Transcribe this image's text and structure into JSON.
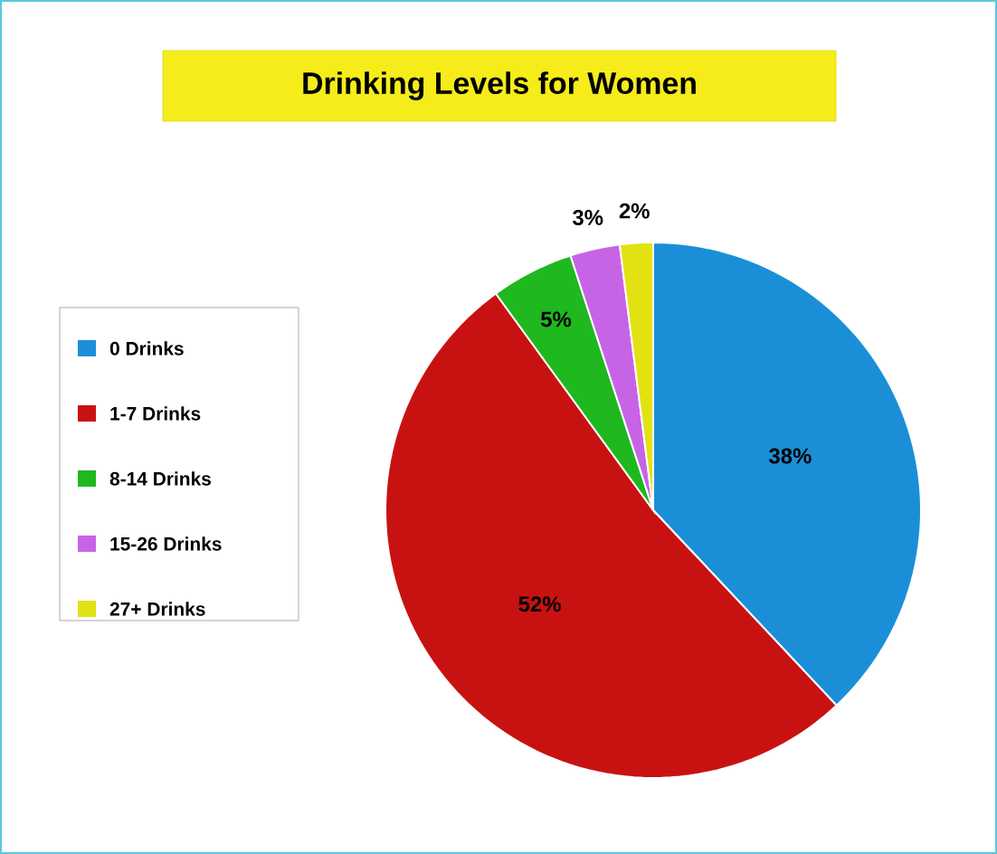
{
  "chart_data": {
    "type": "pie",
    "title": "Drinking Levels for Women",
    "categories": [
      "0 Drinks",
      "1-7 Drinks",
      "8-14 Drinks",
      "15-26 Drinks",
      "27+ Drinks"
    ],
    "values": [
      38,
      52,
      5,
      3,
      2
    ],
    "value_labels": [
      "38%",
      "52%",
      "5%",
      "3%",
      "2%"
    ],
    "colors": [
      "#1a8fd8",
      "#c81212",
      "#1fb81f",
      "#c764e6",
      "#e2e212"
    ],
    "legend": "left"
  }
}
